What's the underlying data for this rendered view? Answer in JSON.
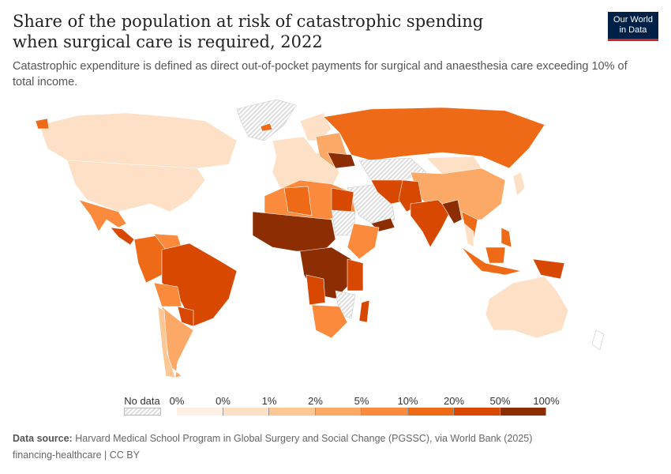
{
  "title": "Share of the population at risk of catastrophic spending when surgical care is required, 2022",
  "subtitle": "Catastrophic expenditure is defined as direct out-of-pocket payments for surgical and anaesthesia care exceeding 10% of total income.",
  "logo": {
    "line1": "Our World",
    "line2": "in Data"
  },
  "legend": {
    "no_data_label": "No data",
    "ticks": [
      "0%",
      "0%",
      "1%",
      "2%",
      "5%",
      "10%",
      "20%",
      "50%",
      "100%"
    ],
    "colors": [
      "#fef0e3",
      "#fde0c5",
      "#fdc794",
      "#fca866",
      "#fb8a3c",
      "#ee6a17",
      "#d94801",
      "#8c2d04"
    ]
  },
  "source": {
    "label": "Data source:",
    "text": "Harvard Medical School Program in Global Surgery and Social Change (PGSSC), via World Bank (2025)"
  },
  "license": "financing-healthcare | CC BY"
}
